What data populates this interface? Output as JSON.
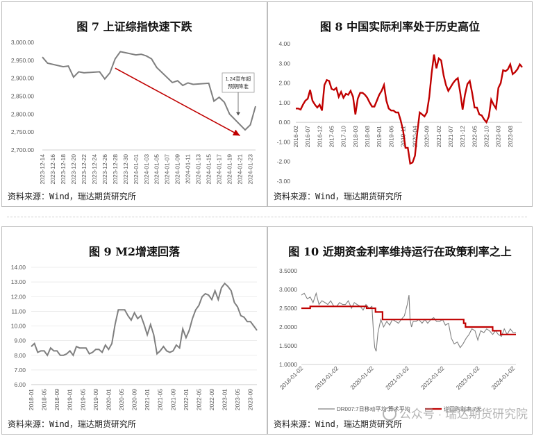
{
  "watermark": "公众号 · 瑞达期货研究院",
  "chart_data": [
    {
      "type": "line",
      "title": "图 7 上证综指快速下跌",
      "source": "资料来源：Wind，瑞达期货研究所",
      "ylim": [
        2700,
        3000
      ],
      "yticks": [
        "3,000.00",
        "2,950.00",
        "2,900.00",
        "2,850.00",
        "2,800.00",
        "2,750.00",
        "2,700.00"
      ],
      "ytick_values": [
        3000,
        2950,
        2900,
        2850,
        2800,
        2750,
        2700
      ],
      "xtick_labels": [
        "2023-12-14",
        "2023-12-16",
        "2023-12-18",
        "2023-12-20",
        "2023-12-22",
        "2023-12-24",
        "2023-12-26",
        "2023-12-28",
        "2023-12-30",
        "2024-01-01",
        "2024-01-03",
        "2024-01-05",
        "2024-01-07",
        "2024-01-09",
        "2024-01-11",
        "2024-01-13",
        "2024-01-15",
        "2024-01-17",
        "2024-01-19",
        "2024-01-21",
        "2024-01-23"
      ],
      "x_days": [
        0,
        1,
        4,
        5,
        6,
        7,
        8,
        11,
        12,
        13,
        14,
        15,
        18,
        19,
        20,
        21,
        22,
        25,
        26,
        27,
        28,
        29,
        32,
        33,
        34,
        35,
        36,
        39,
        40,
        41
      ],
      "values": [
        2959,
        2942,
        2932,
        2934,
        2903,
        2918,
        2915,
        2918,
        2898,
        2915,
        2954,
        2974,
        2965,
        2967,
        2962,
        2954,
        2930,
        2888,
        2893,
        2880,
        2887,
        2883,
        2886,
        2836,
        2847,
        2833,
        2800,
        2756,
        2770,
        2822
      ],
      "annotation": {
        "text": [
          "1.24宣布超",
          "预期降准"
        ],
        "x_day": 41,
        "y": 2790
      },
      "trend_arrow": {
        "from": [
          14,
          2928
        ],
        "to": [
          38,
          2740
        ]
      },
      "series_color": "#7f7f7f",
      "accent": "#c00000"
    },
    {
      "type": "line",
      "title": "图 8 中国实际利率处于历史高位",
      "source": "资料来源：Wind，瑞达期货研究所",
      "ylim": [
        -3,
        4
      ],
      "yticks": [
        "4.00",
        "3.00",
        "2.00",
        "1.00",
        "0.00",
        "-1.00",
        "-2.00",
        "-3.00"
      ],
      "ytick_values": [
        4,
        3,
        2,
        1,
        0,
        -1,
        -2,
        -3
      ],
      "xtick_labels": [
        "2016-02",
        "2016-07",
        "2016-12",
        "2017-05",
        "2017-10",
        "2018-03",
        "2018-08",
        "2019-01",
        "2019-06",
        "2019-11",
        "2020-04",
        "2020-09",
        "2021-02",
        "2021-07",
        "2021-12",
        "2022-05",
        "2022-10",
        "2023-03",
        "2023-08"
      ],
      "values": [
        0.7,
        0.7,
        0.65,
        0.9,
        1.1,
        1.2,
        1.65,
        1.1,
        0.9,
        0.75,
        0.9,
        0.6,
        1.9,
        2.15,
        2.1,
        1.7,
        1.65,
        1.75,
        1.3,
        1.55,
        1.25,
        1.45,
        1.4,
        1.6,
        1.3,
        0.4,
        1.2,
        1.5,
        1.5,
        1.4,
        1.25,
        1.0,
        0.8,
        0.8,
        1.1,
        1.4,
        1.6,
        1.9,
        1.1,
        0.7,
        0.6,
        0.6,
        0.5,
        0.5,
        0.1,
        -0.4,
        -1.3,
        -1.3,
        -2.1,
        -2.05,
        -1.7,
        -0.5,
        0.5,
        0.4,
        0.3,
        0.5,
        1.3,
        2.5,
        3.45,
        2.75,
        3.25,
        3.15,
        2.4,
        1.9,
        1.6,
        1.8,
        2.0,
        2.15,
        2.25,
        1.5,
        0.65,
        1.4,
        1.95,
        2.1,
        1.5,
        0.75,
        0.75,
        0.4,
        0.35,
        0.15,
        0.0,
        0.3,
        1.15,
        0.9,
        0.7,
        1.75,
        2.0,
        2.65,
        2.6,
        2.7,
        2.95,
        2.45,
        2.55,
        2.7,
        2.95,
        2.8
      ],
      "series_color": "#c00000"
    },
    {
      "type": "line",
      "title": "图 9 M2增速回落",
      "source": "资料来源：Wind，瑞达期货研究所",
      "ylim": [
        6,
        14
      ],
      "yticks": [
        "14.00",
        "13.00",
        "12.00",
        "11.00",
        "10.00",
        "9.00",
        "8.00",
        "7.00",
        "6.00"
      ],
      "ytick_values": [
        14,
        13,
        12,
        11,
        10,
        9,
        8,
        7,
        6
      ],
      "xtick_labels": [
        "2018-01",
        "2018-05",
        "2018-09",
        "2019-01",
        "2019-05",
        "2019-09",
        "2020-01",
        "2020-05",
        "2020-09",
        "2021-01",
        "2021-05",
        "2021-09",
        "2022-01",
        "2022-05",
        "2022-09",
        "2023-01",
        "2023-05",
        "2023-09"
      ],
      "values": [
        8.6,
        8.8,
        8.2,
        8.3,
        8.3,
        8.0,
        8.5,
        8.3,
        8.3,
        8.0,
        8.0,
        8.1,
        8.3,
        8.0,
        8.6,
        8.5,
        8.5,
        8.5,
        8.1,
        8.2,
        8.4,
        8.4,
        8.2,
        8.7,
        8.4,
        8.8,
        10.1,
        11.1,
        11.1,
        11.1,
        10.7,
        10.4,
        10.9,
        10.5,
        10.7,
        10.1,
        9.4,
        10.1,
        9.4,
        8.1,
        8.3,
        8.6,
        8.3,
        8.2,
        8.3,
        8.7,
        8.5,
        9.8,
        9.2,
        9.7,
        10.5,
        11.1,
        11.4,
        12.0,
        12.2,
        12.1,
        11.8,
        12.4,
        11.8,
        12.6,
        12.9,
        12.7,
        12.4,
        11.6,
        11.3,
        10.7,
        10.6,
        10.3,
        10.3,
        10.0,
        9.7
      ],
      "series_color": "#7f7f7f"
    },
    {
      "type": "line",
      "title": "图 10 近期资金利率维持运行在政策利率之上",
      "source": "资料来源：Wind，瑞达期货研究所",
      "ylim": [
        1.0,
        3.5
      ],
      "yticks": [
        "3.5000",
        "3.0000",
        "2.5000",
        "2.0000",
        "1.5000",
        "1.0000"
      ],
      "ytick_values": [
        3.5,
        3.0,
        2.5,
        2.0,
        1.5,
        1.0
      ],
      "xtick_labels": [
        "2018-01-02",
        "2019-01-02",
        "2020-01-02",
        "2021-01-02",
        "2022-01-02",
        "2023-01-02",
        "2024-01-02"
      ],
      "legend": [
        "DR007:7日移动平均:算术平均",
        "逆回购利率:7天"
      ],
      "series": [
        {
          "name": "DR007:7日移动平均:算术平均",
          "color": "#808080",
          "x_years": [
            0.0,
            0.08,
            0.17,
            0.25,
            0.33,
            0.42,
            0.5,
            0.58,
            0.67,
            0.75,
            0.83,
            0.92,
            1.0,
            1.08,
            1.17,
            1.25,
            1.33,
            1.42,
            1.5,
            1.58,
            1.67,
            1.75,
            1.83,
            1.92,
            2.0,
            2.05,
            2.08,
            2.12,
            2.17,
            2.25,
            2.33,
            2.42,
            2.5,
            2.58,
            2.67,
            2.75,
            2.83,
            2.92,
            3.0,
            3.05,
            3.08,
            3.12,
            3.17,
            3.25,
            3.33,
            3.42,
            3.5,
            3.58,
            3.67,
            3.75,
            3.83,
            3.92,
            4.0,
            4.08,
            4.17,
            4.25,
            4.33,
            4.42,
            4.5,
            4.58,
            4.67,
            4.75,
            4.83,
            4.92,
            5.0,
            5.08,
            5.17,
            5.25,
            5.33,
            5.42,
            5.5,
            5.58,
            5.67,
            5.75,
            5.83,
            5.92,
            6.0,
            6.08
          ],
          "values": [
            2.85,
            2.9,
            2.75,
            2.8,
            2.65,
            2.9,
            2.6,
            2.7,
            2.65,
            2.6,
            2.7,
            2.55,
            2.55,
            2.65,
            2.6,
            2.6,
            2.7,
            2.5,
            2.65,
            2.6,
            2.55,
            2.45,
            2.6,
            2.5,
            2.55,
            1.75,
            1.45,
            1.35,
            1.85,
            2.2,
            2.0,
            2.15,
            2.05,
            2.2,
            2.15,
            2.1,
            2.2,
            2.3,
            2.6,
            2.85,
            2.2,
            2.0,
            2.15,
            2.15,
            2.2,
            2.1,
            2.2,
            2.1,
            2.2,
            2.25,
            2.15,
            2.15,
            2.2,
            2.05,
            2.1,
            1.7,
            1.55,
            1.6,
            1.45,
            1.55,
            1.7,
            1.8,
            1.95,
            1.9,
            1.65,
            1.9,
            1.85,
            1.95,
            1.9,
            1.8,
            1.9,
            1.8,
            1.75,
            1.95,
            1.8,
            1.95,
            1.85,
            1.85
          ]
        },
        {
          "name": "逆回购利率:7天",
          "color": "#c00000",
          "steps": [
            [
              0.0,
              2.5
            ],
            [
              0.25,
              2.55
            ],
            [
              1.85,
              2.5
            ],
            [
              2.1,
              2.4
            ],
            [
              2.3,
              2.2
            ],
            [
              4.6,
              2.1
            ],
            [
              4.65,
              2.0
            ],
            [
              5.42,
              1.9
            ],
            [
              5.65,
              1.8
            ]
          ]
        }
      ]
    }
  ]
}
